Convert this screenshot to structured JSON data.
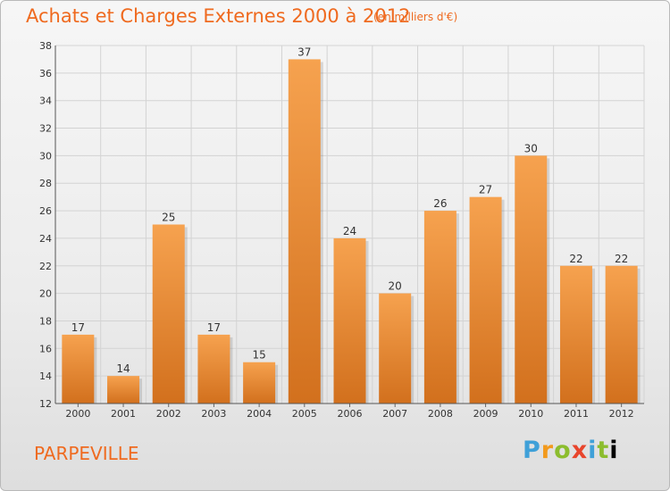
{
  "header": {
    "title": "Achats et Charges Externes 2000 à 2012",
    "subtitle": "(en milliers d'€)"
  },
  "footer": {
    "city": "PARPEVILLE",
    "logo": [
      "P",
      "r",
      "o",
      "x",
      "i",
      "t",
      "i"
    ]
  },
  "colors": {
    "bar_light": "#f6a24f",
    "bar_dark": "#d2701d",
    "accent": "#ef6a1f"
  },
  "chart_data": {
    "type": "bar",
    "categories": [
      "2000",
      "2001",
      "2002",
      "2003",
      "2004",
      "2005",
      "2006",
      "2007",
      "2008",
      "2009",
      "2010",
      "2011",
      "2012"
    ],
    "values": [
      17,
      14,
      25,
      17,
      15,
      37,
      24,
      20,
      26,
      27,
      30,
      22,
      22
    ],
    "ylim": [
      12,
      38
    ],
    "yticks": [
      12,
      14,
      16,
      18,
      20,
      22,
      24,
      26,
      28,
      30,
      32,
      34,
      36,
      38
    ],
    "grid": true,
    "data_labels": true
  }
}
